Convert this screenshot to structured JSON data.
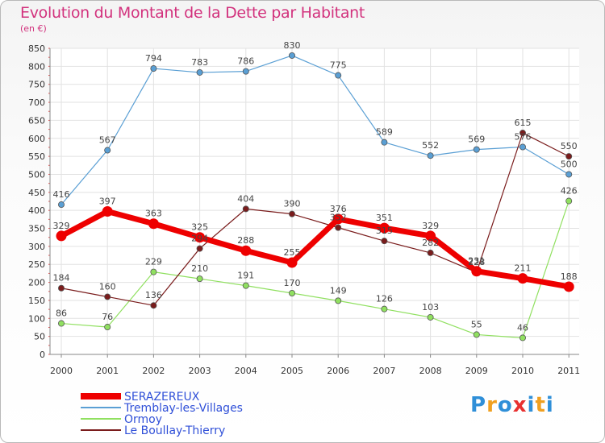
{
  "chart_data": {
    "type": "line",
    "title": "Evolution du Montant de la Dette par Habitant",
    "subtitle": "(en €)",
    "x": [
      "2000",
      "2001",
      "2002",
      "2003",
      "2004",
      "2005",
      "2006",
      "2007",
      "2008",
      "2009",
      "2010",
      "2011"
    ],
    "ylim": [
      0,
      850
    ],
    "yticks": [
      0,
      50,
      100,
      150,
      200,
      250,
      300,
      350,
      400,
      450,
      500,
      550,
      600,
      650,
      700,
      750,
      800,
      850
    ],
    "grid": true,
    "legend_position": "bottom-left",
    "series": [
      {
        "name": "SERAZEREUX",
        "color": "#ee0000",
        "values": [
          329,
          397,
          363,
          325,
          288,
          255,
          376,
          351,
          329,
          231,
          211,
          188
        ]
      },
      {
        "name": "Tremblay-les-Villages",
        "color": "#5a9fd4",
        "values": [
          416,
          567,
          794,
          783,
          786,
          830,
          775,
          589,
          552,
          569,
          576,
          500
        ]
      },
      {
        "name": "Ormoy",
        "color": "#90e060",
        "values": [
          86,
          76,
          229,
          210,
          191,
          170,
          149,
          126,
          103,
          55,
          46,
          426
        ]
      },
      {
        "name": "Le Boullay-Thierry",
        "color": "#7a1c1c",
        "values": [
          184,
          160,
          136,
          294,
          404,
          390,
          352,
          315,
          282,
          228,
          615,
          550
        ]
      }
    ]
  },
  "logo_text": "Proxiti"
}
